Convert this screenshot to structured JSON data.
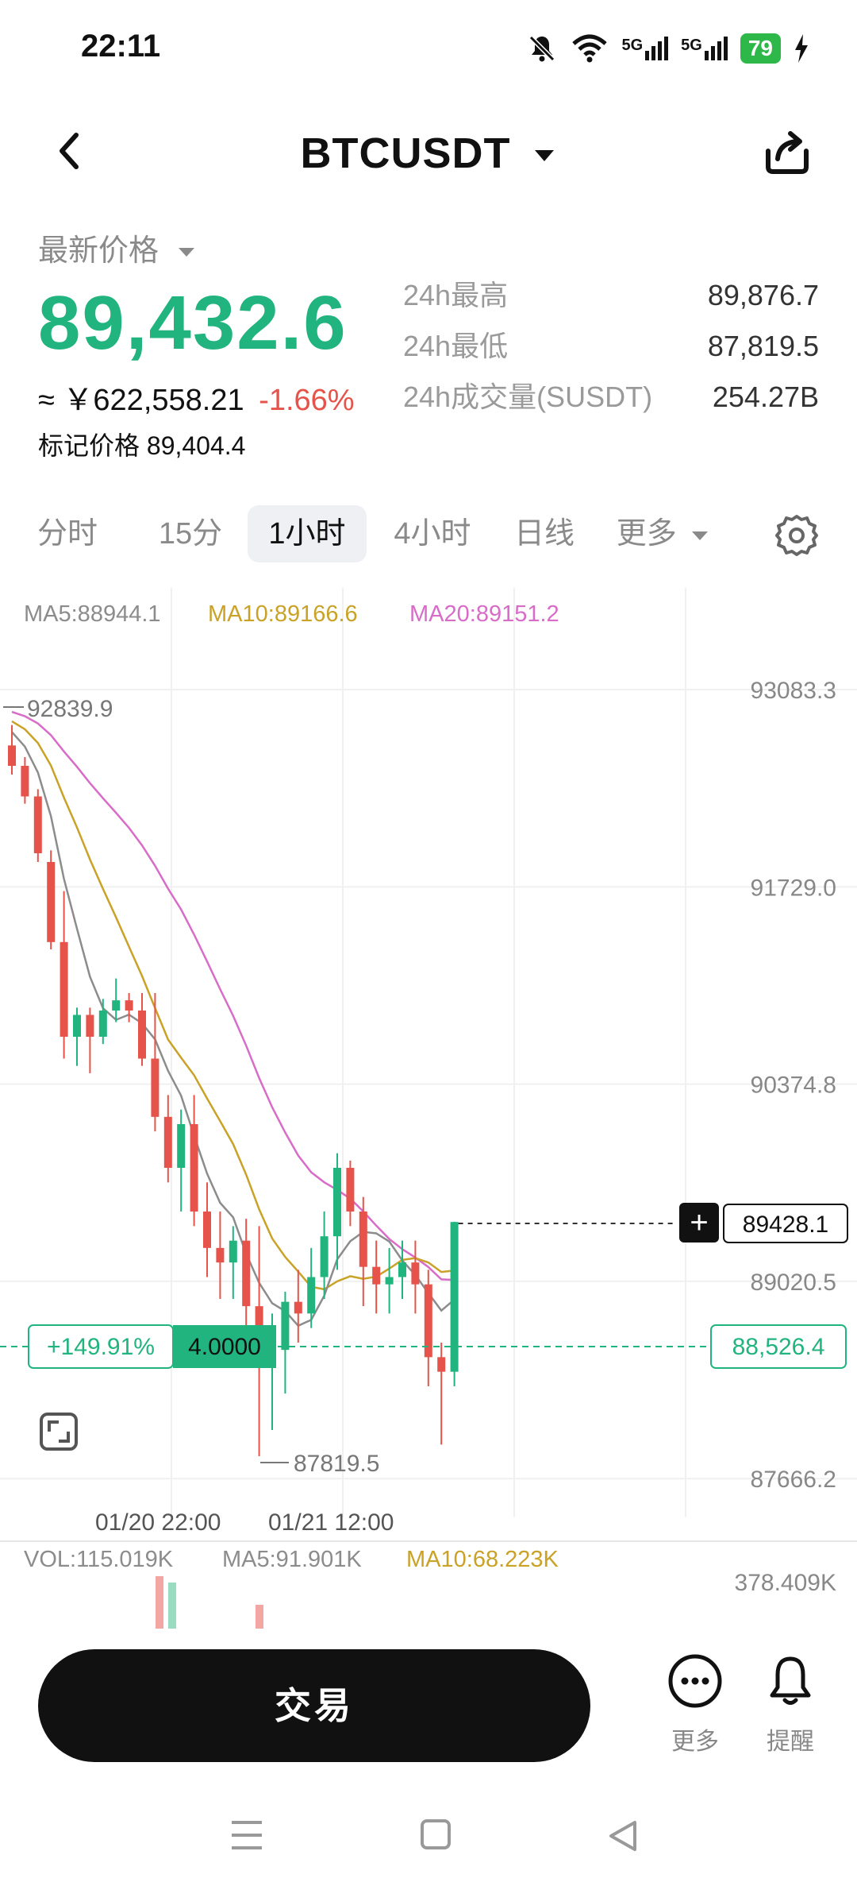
{
  "status": {
    "time": "22:11",
    "battery": "79",
    "net1": "5G",
    "net2": "5G"
  },
  "header": {
    "title": "BTCUSDT"
  },
  "price": {
    "latest_label": "最新价格",
    "last": "89,432.6",
    "cny": "≈ ￥622,558.21",
    "change": "-1.66%",
    "mark": "标记价格 89,404.4"
  },
  "stats": [
    {
      "label": "24h最高",
      "value": "89,876.7"
    },
    {
      "label": "24h最低",
      "value": "87,819.5"
    },
    {
      "label": "24h成交量(SUSDT)",
      "value": "254.27B"
    }
  ],
  "tabs": [
    {
      "label": "分时"
    },
    {
      "label": "15分"
    },
    {
      "label": "1小时",
      "active": true
    },
    {
      "label": "4小时"
    },
    {
      "label": "日线"
    },
    {
      "label": "更多"
    }
  ],
  "colors": {
    "up": "#21b47f",
    "down": "#e5534b",
    "ma5": "#8c8c8c",
    "ma10": "#c9a227",
    "ma20": "#d86cc8"
  },
  "chart_data": {
    "type": "candlestick",
    "ma_labels": [
      "MA5:88944.1",
      "MA10:89166.6",
      "MA20:89151.2"
    ],
    "y_ticks": [
      "93083.3",
      "91729.0",
      "90374.8",
      "89020.5",
      "87666.2"
    ],
    "y_tick_values": [
      93083.3,
      91729.0,
      90374.8,
      89020.5,
      87666.2
    ],
    "x_labels": [
      "01/20 22:00",
      "01/21 12:00"
    ],
    "high_marker": "92839.9",
    "low_marker": "87819.5",
    "current_price_label": "89428.1",
    "position_pnl": "+149.91%",
    "position_leverage": "4.0000",
    "position_entry": "88,526.4",
    "ylim": [
      87400,
      93400
    ],
    "candles": [
      [
        92700,
        92840,
        92500,
        92560
      ],
      [
        92560,
        92620,
        92300,
        92350
      ],
      [
        92350,
        92400,
        91900,
        91960
      ],
      [
        91900,
        91980,
        91300,
        91350
      ],
      [
        91350,
        91700,
        90550,
        90700
      ],
      [
        90700,
        90900,
        90500,
        90850
      ],
      [
        90850,
        90900,
        90450,
        90700
      ],
      [
        90700,
        90960,
        90650,
        90880
      ],
      [
        90880,
        91100,
        90800,
        90950
      ],
      [
        90950,
        91000,
        90800,
        90880
      ],
      [
        90880,
        91000,
        90500,
        90550
      ],
      [
        90550,
        91000,
        90050,
        90150
      ],
      [
        90150,
        90300,
        89700,
        89800
      ],
      [
        89800,
        90200,
        89500,
        90100
      ],
      [
        90100,
        90300,
        89400,
        89500
      ],
      [
        89500,
        89700,
        89050,
        89250
      ],
      [
        89250,
        89500,
        88900,
        89150
      ],
      [
        89150,
        89400,
        88900,
        89300
      ],
      [
        89300,
        89450,
        88650,
        88850
      ],
      [
        88850,
        89400,
        87820,
        88500
      ],
      [
        88500,
        88800,
        88000,
        88550
      ],
      [
        88550,
        88950,
        88250,
        88880
      ],
      [
        88880,
        89100,
        88600,
        88800
      ],
      [
        88800,
        89250,
        88700,
        89050
      ],
      [
        89050,
        89500,
        88900,
        89330
      ],
      [
        89330,
        89900,
        89100,
        89800
      ],
      [
        89800,
        89850,
        89400,
        89500
      ],
      [
        89500,
        89600,
        88850,
        89120
      ],
      [
        89120,
        89300,
        88800,
        89000
      ],
      [
        89000,
        89250,
        88800,
        89050
      ],
      [
        89050,
        89300,
        88900,
        89150
      ],
      [
        89150,
        89300,
        88800,
        89000
      ],
      [
        89000,
        89100,
        88300,
        88500
      ],
      [
        88500,
        88600,
        87900,
        88400
      ],
      [
        88400,
        89430,
        88300,
        89428
      ]
    ],
    "volume": {
      "label": "VOL:115.019K",
      "ma5": "MA5:91.901K",
      "ma10": "MA10:68.223K",
      "y_tick": "378.409K"
    }
  },
  "bottom": {
    "trade": "交易",
    "more": "更多",
    "alert": "提醒"
  }
}
